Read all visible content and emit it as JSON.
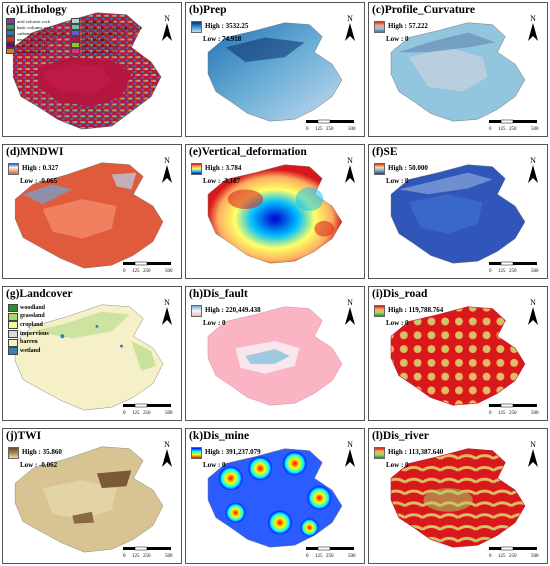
{
  "panels": [
    {
      "id": "a",
      "title": "(a)Lithology",
      "type": "categorical",
      "legend": [
        {
          "label": "acid volcanic rock",
          "color": "#7d3f98"
        },
        {
          "label": "acid plutonic rock",
          "color": "#a9d8d0"
        },
        {
          "label": "basic volcanic rock",
          "color": "#2ca25f"
        },
        {
          "label": "siliceous clastic sedimentary rock",
          "color": "#66c2a4"
        },
        {
          "label": "carbonate sedimentary rock",
          "color": "#3f6fb0"
        },
        {
          "label": "mixed sedimentary rock",
          "color": "#6a5acd"
        },
        {
          "label": "neutral plutonic rock",
          "color": "#d7301f"
        },
        {
          "label": "loose sediment",
          "color": "#b5163f"
        },
        {
          "label": "pyroclastic rock",
          "color": "#7a0177"
        },
        {
          "label": "meso-volcanic rock",
          "color": "#8ac926"
        },
        {
          "label": "metamorphic rock",
          "color": "#ec7014"
        },
        {
          "label": "basic plutonic rock",
          "color": "#e7298a"
        }
      ]
    },
    {
      "id": "b",
      "title": "(b)Prep",
      "type": "ramp",
      "high": "High : 3532.25",
      "low": "Low : 74.918",
      "colors": [
        "#08306b",
        "#2171b5",
        "#6baed6",
        "#c6dbef"
      ]
    },
    {
      "id": "c",
      "title": "(c)Profile_Curvature",
      "type": "ramp",
      "high": "High : 57.222",
      "low": "Low : 0",
      "colors": [
        "#d73027",
        "#f4a582",
        "#92c5de",
        "#4575b4"
      ]
    },
    {
      "id": "d",
      "title": "(d)MNDWI",
      "type": "ramp",
      "high": "High : 0.327",
      "low": "Low : -0.065",
      "colors": [
        "#2166ac",
        "#f7f7f7",
        "#f4a582",
        "#d6604d"
      ]
    },
    {
      "id": "e",
      "title": "(e)Vertical_deformation",
      "type": "ramp",
      "high": "High : 3.784",
      "low": "Low : -3.187",
      "colors": [
        "#d7191c",
        "#fdae61",
        "#ffff66",
        "#00c0ff",
        "#0000cd"
      ]
    },
    {
      "id": "f",
      "title": "(f)SE",
      "type": "ramp",
      "high": "High : 50.000",
      "low": "Low : 0",
      "colors": [
        "#d73027",
        "#fee090",
        "#74add1",
        "#313695"
      ]
    },
    {
      "id": "g",
      "title": "(g)Landcover",
      "type": "categorical",
      "legend": [
        {
          "label": "woodland",
          "color": "#2b8c2b"
        },
        {
          "label": "grassland",
          "color": "#a6d96a"
        },
        {
          "label": "cropland",
          "color": "#f7f7a0"
        },
        {
          "label": "impervious",
          "color": "#d9d9d9"
        },
        {
          "label": "barren",
          "color": "#f5f0c8"
        },
        {
          "label": "wetland",
          "color": "#3182bd"
        }
      ]
    },
    {
      "id": "h",
      "title": "(h)Dis_fault",
      "type": "ramp",
      "high": "High : 220,449.438",
      "low": "Low : 0",
      "colors": [
        "#6baed6",
        "#f7f7f7",
        "#fbb4c4"
      ]
    },
    {
      "id": "i",
      "title": "(i)Dis_road",
      "type": "ramp",
      "high": "High : 119,788.764",
      "low": "Low : 0",
      "colors": [
        "#d7191c",
        "#fdae61",
        "#a6d96a",
        "#1a9641"
      ]
    },
    {
      "id": "j",
      "title": "(j)TWI",
      "type": "ramp",
      "high": "High : 35.860",
      "low": "Low : -0.062",
      "colors": [
        "#6b4a2a",
        "#a8875a",
        "#e8d9b0"
      ]
    },
    {
      "id": "k",
      "title": "(k)Dis_mine",
      "type": "ramp",
      "high": "High : 391,237.079",
      "low": "Low : 0",
      "colors": [
        "#0000ff",
        "#00ffff",
        "#ffff00",
        "#ff0000"
      ]
    },
    {
      "id": "l",
      "title": "(l)Dis_river",
      "type": "ramp",
      "high": "High : 113,387.640",
      "low": "Low : 0",
      "colors": [
        "#d7191c",
        "#fdae61",
        "#a6d96a",
        "#1a9641"
      ]
    }
  ],
  "north_label": "N",
  "scale_ticks": [
    "0",
    "125",
    "250",
    "500"
  ]
}
